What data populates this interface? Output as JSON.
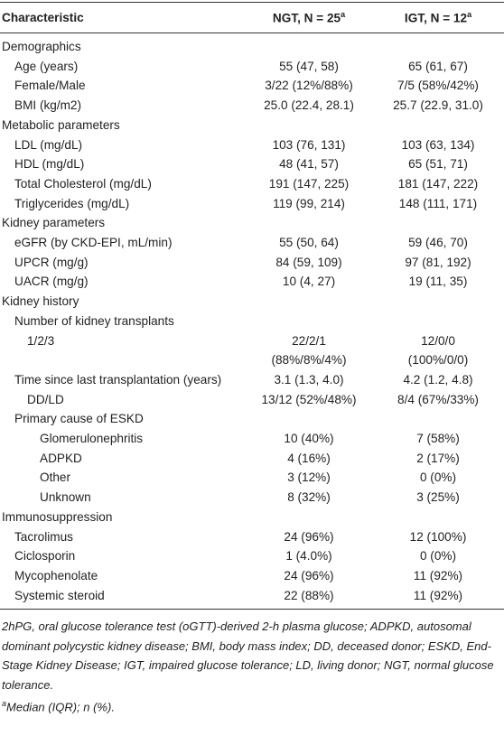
{
  "table": {
    "header": [
      {
        "text": "Characteristic"
      },
      {
        "text": "NGT, N = 25",
        "sup": "a"
      },
      {
        "text": "IGT, N = 12",
        "sup": "a"
      }
    ],
    "rows": [
      [
        "Demographics"
      ],
      [
        "Age (years)",
        "55 (47, 58)",
        "65 (61, 67)"
      ],
      [
        "Female/Male",
        "3/22 (12%/88%)",
        "7/5 (58%/42%)"
      ],
      [
        "BMI (kg/m2)",
        "25.0 (22.4, 28.1)",
        "25.7 (22.9, 31.0)"
      ],
      [
        "Metabolic parameters"
      ],
      [
        "LDL (mg/dL)",
        "103 (76, 131)",
        "103 (63, 134)"
      ],
      [
        "HDL (mg/dL)",
        "48 (41, 57)",
        "65 (51, 71)"
      ],
      [
        "Total Cholesterol (mg/dL)",
        "191 (147, 225)",
        "181 (147, 222)"
      ],
      [
        "Triglycerides (mg/dL)",
        "119 (99, 214)",
        "148 (111, 171)"
      ],
      [
        "Kidney parameters"
      ],
      [
        "eGFR (by CKD-EPI, mL/min)",
        "55 (50, 64)",
        "59 (46, 70)"
      ],
      [
        "UPCR (mg/g)",
        "84 (59, 109)",
        "97 (81, 192)"
      ],
      [
        "UACR (mg/g)",
        "10 (4, 27)",
        "19 (11, 35)"
      ],
      [
        "Kidney history"
      ],
      [
        "Number of kidney transplants"
      ],
      [
        "1/2/3",
        "22/2/1 (88%/8%/4%)",
        "12/0/0 (100%/0/0)"
      ],
      [
        "Time since last transplantation (years)",
        "3.1 (1.3, 4.0)",
        "4.2 (1.2, 4.8)"
      ],
      [
        "DD/LD",
        "13/12 (52%/48%)",
        "8/4 (67%/33%)"
      ],
      [
        "Primary cause of ESKD"
      ],
      [
        "Glomerulonephritis",
        "10 (40%)",
        "7 (58%)"
      ],
      [
        "ADPKD",
        "4 (16%)",
        "2 (17%)"
      ],
      [
        "Other",
        "3 (12%)",
        "0 (0%)"
      ],
      [
        "Unknown",
        "8 (32%)",
        "3 (25%)"
      ],
      [
        "Immunosuppression"
      ],
      [
        "Tacrolimus",
        "24 (96%)",
        "12 (100%)"
      ],
      [
        "Ciclosporin",
        "1 (4.0%)",
        "0 (0%)"
      ],
      [
        "Mycophenolate",
        "24 (96%)",
        "11 (92%)"
      ],
      [
        "Systemic steroid",
        "22 (88%)",
        "11 (92%)"
      ]
    ]
  },
  "footnotes": [
    {
      "text": "2hPG, oral glucose tolerance test (oGTT)-derived 2-h plasma glucose; ADPKD, autosomal dominant polycystic kidney disease; BMI, body mass index; DD, deceased donor; ESKD, End-Stage Kidney Disease; IGT, impaired glucose tolerance; LD, living donor; NGT, normal glucose tolerance."
    },
    {
      "sup": "a",
      "text": "Median (IQR); n (%)."
    }
  ]
}
